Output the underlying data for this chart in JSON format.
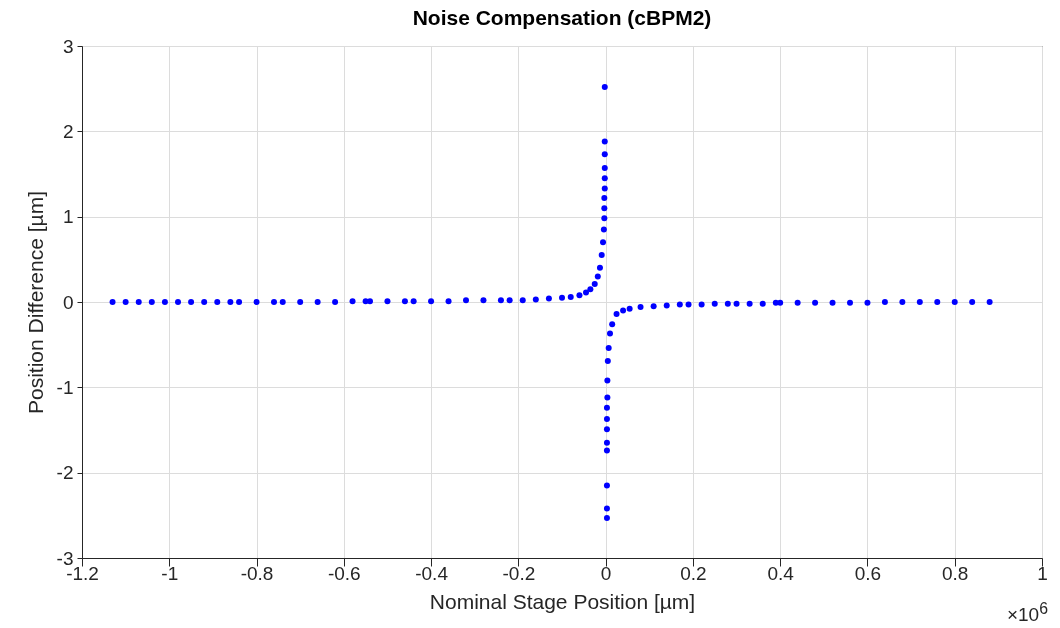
{
  "chart_data": {
    "type": "scatter",
    "title": "Noise Compensation (cBPM2)",
    "xlabel": "Nominal Stage Position [µm]",
    "ylabel": "Position Difference [µm]",
    "annotations": [
      "×10$^{6}$"
    ],
    "xlim": [
      -1.2,
      1
    ],
    "xticks": [
      -1.2,
      -1,
      -0.8,
      -0.6,
      -0.4,
      -0.2,
      0,
      0.2,
      0.4,
      0.6,
      0.8,
      1
    ],
    "ylim": [
      -3,
      3
    ],
    "yticks": [
      -3,
      -2,
      -1,
      0,
      1,
      2,
      3
    ],
    "grid": true,
    "marker": "circle",
    "series": [
      {
        "color": "#0000ff",
        "x": [
          -1.13,
          -1.1,
          -1.07,
          -1.04,
          -1.01,
          -0.98,
          -0.95,
          -0.92,
          -0.89,
          -0.86,
          -0.84,
          -0.8,
          -0.76,
          -0.74,
          -0.7,
          -0.66,
          -0.62,
          -0.58,
          -0.55,
          -0.54,
          -0.5,
          -0.46,
          -0.44,
          -0.4,
          -0.36,
          -0.32,
          -0.28,
          -0.24,
          -0.22,
          -0.19,
          -0.16,
          -0.13,
          -0.1,
          -0.08,
          -0.06,
          -0.045,
          -0.035,
          -0.025,
          -0.018,
          -0.013,
          -0.009,
          -0.006,
          -0.004,
          -0.003,
          -0.003,
          -0.003,
          -0.002,
          -0.002,
          -0.002,
          -0.002,
          -0.002,
          -0.002,
          0.003,
          0.003,
          0.003,
          0.003,
          0.003,
          0.003,
          0.003,
          0.003,
          0.004,
          0.004,
          0.005,
          0.007,
          0.01,
          0.015,
          0.025,
          0.04,
          0.055,
          0.08,
          0.11,
          0.14,
          0.17,
          0.19,
          0.22,
          0.25,
          0.28,
          0.3,
          0.33,
          0.36,
          0.39,
          0.4,
          0.44,
          0.48,
          0.52,
          0.56,
          0.6,
          0.64,
          0.68,
          0.72,
          0.76,
          0.8,
          0.84,
          0.88
        ],
        "values": [
          0,
          0,
          0,
          0,
          0,
          0,
          0,
          0,
          0,
          0,
          0,
          0,
          0,
          0,
          0,
          0,
          0,
          0.01,
          0.01,
          0.01,
          0.01,
          0.01,
          0.01,
          0.01,
          0.01,
          0.02,
          0.02,
          0.02,
          0.02,
          0.02,
          0.03,
          0.04,
          0.05,
          0.06,
          0.08,
          0.11,
          0.15,
          0.21,
          0.3,
          0.4,
          0.55,
          0.7,
          0.85,
          0.98,
          1.1,
          1.22,
          1.33,
          1.45,
          1.57,
          1.73,
          1.88,
          2.52,
          -2.53,
          -2.42,
          -2.15,
          -1.74,
          -1.65,
          -1.49,
          -1.37,
          -1.24,
          -1.12,
          -0.92,
          -0.69,
          -0.54,
          -0.37,
          -0.26,
          -0.14,
          -0.1,
          -0.08,
          -0.06,
          -0.05,
          -0.04,
          -0.03,
          -0.03,
          -0.03,
          -0.02,
          -0.02,
          -0.02,
          -0.02,
          -0.02,
          -0.01,
          -0.01,
          -0.01,
          -0.01,
          -0.01,
          -0.01,
          -0.01,
          0,
          0,
          0,
          0,
          0,
          0,
          0
        ]
      }
    ]
  }
}
